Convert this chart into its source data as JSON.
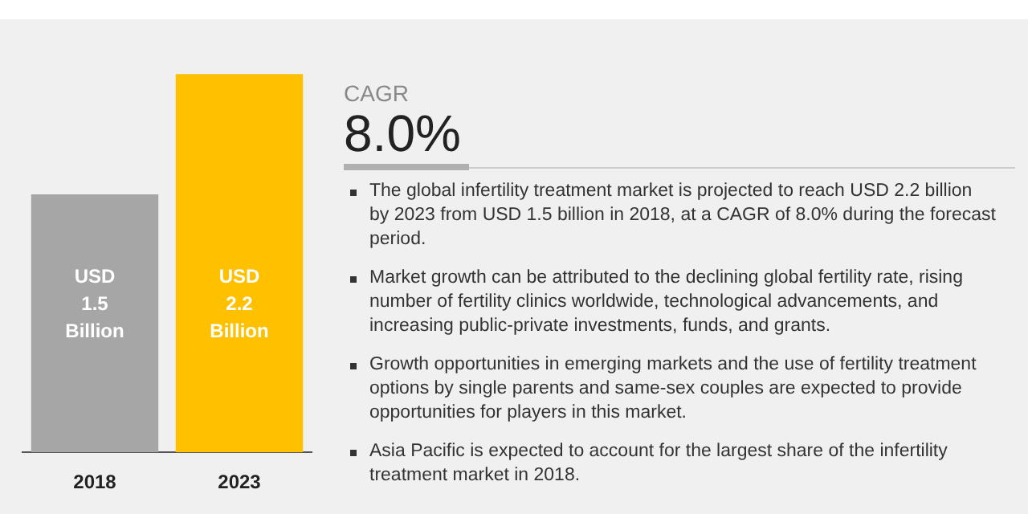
{
  "chart_data": [
    {
      "type": "bar",
      "categories": [
        "2018",
        "2023"
      ],
      "series": [
        {
          "values": [
            1.5,
            2.2
          ],
          "colors": [
            "#a6a6a6",
            "#ffc000"
          ],
          "value_labels": [
            "USD 1.5 Billion",
            "USD 2.2 Billion"
          ]
        }
      ],
      "tick_labels": "x",
      "grid": false,
      "legend": false
    },
    {
      "type": "other",
      "title": "CAGR",
      "subtitle": "8.0%",
      "annotations": [
        "The global infertility treatment market is projected to reach USD 2.2 billion by 2023 from USD 1.5 billion in 2018, at a CAGR of 8.0% during the forecast period.",
        "Market growth can be attributed to the declining global fertility rate, rising number of fertility clinics worldwide, technological advancements, and increasing public-private investments, funds, and grants.",
        "Growth opportunities in emerging markets and the use of fertility treatment options by single parents and same-sex couples are expected to provide opportunities for players in this market.",
        "Asia Pacific is expected to account for the largest share of the infertility treatment market in 2018."
      ]
    }
  ]
}
